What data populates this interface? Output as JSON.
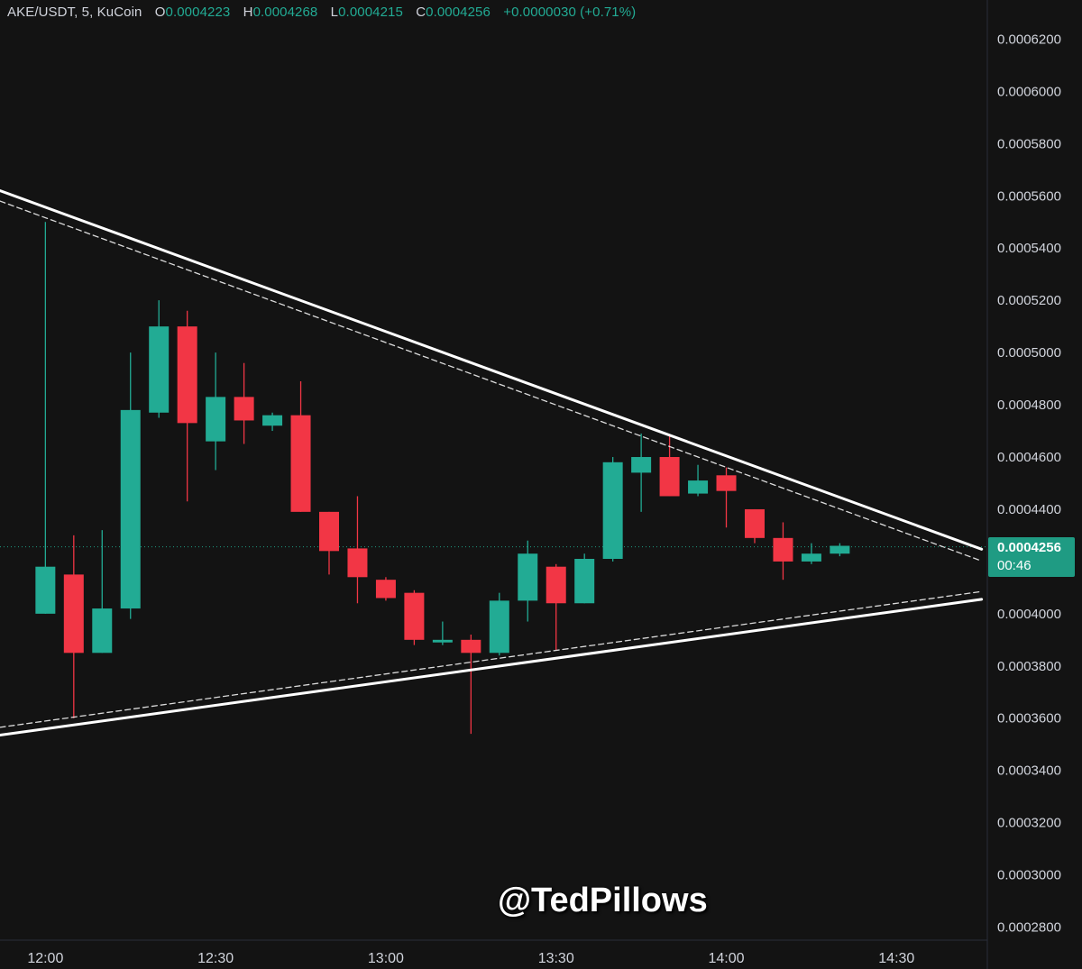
{
  "legend": {
    "symbol": "AKE/USDT, 5, KuCoin",
    "o_label": "O",
    "o_value": "0.0004223",
    "h_label": "H",
    "h_value": "0.0004268",
    "l_label": "L",
    "l_value": "0.0004215",
    "c_label": "C",
    "c_value": "0.0004256",
    "change": "+0.0000030 (+0.71%)"
  },
  "last_price": {
    "price": "0.0004256",
    "countdown": "00:46"
  },
  "watermark": "@TedPillows",
  "colors": {
    "up": "#22ab94",
    "down": "#f23645",
    "background": "#131313",
    "grid_text": "#d1d4dc",
    "trendline": "#ffffff",
    "price_tag": "#1f9b83"
  },
  "chart_data": {
    "type": "candlestick",
    "title": "AKE/USDT, 5, KuCoin",
    "x_tick_labels": [
      "12:00",
      "12:30",
      "13:00",
      "13:30",
      "14:00",
      "14:30"
    ],
    "y_tick_labels": [
      "0.0006200",
      "0.0006000",
      "0.0005800",
      "0.0005600",
      "0.0005400",
      "0.0005200",
      "0.0005000",
      "0.0004800",
      "0.0004600",
      "0.0004400",
      "0.0004000",
      "0.0003800",
      "0.0003600",
      "0.0003400",
      "0.0003200",
      "0.0003000",
      "0.0002800"
    ],
    "ylim": [
      0.000275,
      0.000635
    ],
    "xlim": [
      "11:52",
      "14:46"
    ],
    "interval_minutes": 5,
    "candles": [
      {
        "t": "12:00",
        "o": 0.0004,
        "h": 0.00055,
        "l": 0.0004,
        "c": 0.000418
      },
      {
        "t": "12:05",
        "o": 0.000415,
        "h": 0.00043,
        "l": 0.00036,
        "c": 0.000385
      },
      {
        "t": "12:10",
        "o": 0.000385,
        "h": 0.000432,
        "l": 0.000385,
        "c": 0.000402
      },
      {
        "t": "12:15",
        "o": 0.000402,
        "h": 0.0005,
        "l": 0.000398,
        "c": 0.000478
      },
      {
        "t": "12:20",
        "o": 0.000477,
        "h": 0.00052,
        "l": 0.000475,
        "c": 0.00051
      },
      {
        "t": "12:25",
        "o": 0.00051,
        "h": 0.000516,
        "l": 0.000443,
        "c": 0.000473
      },
      {
        "t": "12:30",
        "o": 0.000466,
        "h": 0.0005,
        "l": 0.000455,
        "c": 0.000483
      },
      {
        "t": "12:35",
        "o": 0.000483,
        "h": 0.000496,
        "l": 0.000465,
        "c": 0.000474
      },
      {
        "t": "12:40",
        "o": 0.000472,
        "h": 0.000477,
        "l": 0.00047,
        "c": 0.000476
      },
      {
        "t": "12:45",
        "o": 0.000476,
        "h": 0.000489,
        "l": 0.000439,
        "c": 0.000439
      },
      {
        "t": "12:50",
        "o": 0.000439,
        "h": 0.000439,
        "l": 0.000415,
        "c": 0.000424
      },
      {
        "t": "12:55",
        "o": 0.000425,
        "h": 0.000445,
        "l": 0.000404,
        "c": 0.000414
      },
      {
        "t": "13:00",
        "o": 0.000413,
        "h": 0.000414,
        "l": 0.000405,
        "c": 0.000406
      },
      {
        "t": "13:05",
        "o": 0.000408,
        "h": 0.000409,
        "l": 0.000388,
        "c": 0.00039
      },
      {
        "t": "13:10",
        "o": 0.000389,
        "h": 0.000397,
        "l": 0.000388,
        "c": 0.00039
      },
      {
        "t": "13:15",
        "o": 0.00039,
        "h": 0.000392,
        "l": 0.000354,
        "c": 0.000385
      },
      {
        "t": "13:20",
        "o": 0.000385,
        "h": 0.000408,
        "l": 0.000384,
        "c": 0.000405
      },
      {
        "t": "13:25",
        "o": 0.000405,
        "h": 0.000428,
        "l": 0.000397,
        "c": 0.000423
      },
      {
        "t": "13:30",
        "o": 0.000418,
        "h": 0.000419,
        "l": 0.000386,
        "c": 0.000404
      },
      {
        "t": "13:35",
        "o": 0.000404,
        "h": 0.000423,
        "l": 0.000404,
        "c": 0.000421
      },
      {
        "t": "13:40",
        "o": 0.000421,
        "h": 0.00046,
        "l": 0.00042,
        "c": 0.000458
      },
      {
        "t": "13:45",
        "o": 0.000454,
        "h": 0.000469,
        "l": 0.000439,
        "c": 0.00046
      },
      {
        "t": "13:50",
        "o": 0.00046,
        "h": 0.000468,
        "l": 0.000445,
        "c": 0.000445
      },
      {
        "t": "13:55",
        "o": 0.000446,
        "h": 0.000457,
        "l": 0.000445,
        "c": 0.000451
      },
      {
        "t": "14:00",
        "o": 0.000453,
        "h": 0.000456,
        "l": 0.000433,
        "c": 0.000447
      },
      {
        "t": "14:05",
        "o": 0.00044,
        "h": 0.00044,
        "l": 0.000427,
        "c": 0.000429
      },
      {
        "t": "14:10",
        "o": 0.000429,
        "h": 0.000435,
        "l": 0.000413,
        "c": 0.00042
      },
      {
        "t": "14:15",
        "o": 0.00042,
        "h": 0.000427,
        "l": 0.000419,
        "c": 0.000423
      },
      {
        "t": "14:20",
        "o": 0.000423,
        "h": 0.000427,
        "l": 0.000422,
        "c": 0.000426
      }
    ],
    "trendlines": [
      {
        "style": "solid",
        "from": [
          "11:52",
          0.000562
        ],
        "to": [
          "14:45",
          0.0004247
        ]
      },
      {
        "style": "dashed",
        "from": [
          "11:52",
          0.000558
        ],
        "to": [
          "14:45",
          0.0004202
        ]
      },
      {
        "style": "solid",
        "from": [
          "11:52",
          0.0003535
        ],
        "to": [
          "14:45",
          0.0004055
        ]
      },
      {
        "style": "dashed",
        "from": [
          "11:52",
          0.0003565
        ],
        "to": [
          "14:45",
          0.0004085
        ]
      }
    ],
    "last_price_line": 0.0004256
  }
}
